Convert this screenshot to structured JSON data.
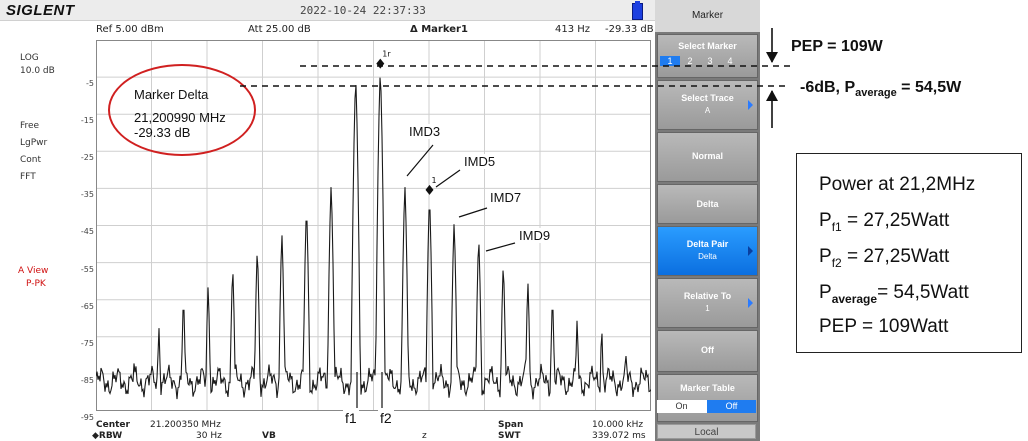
{
  "header": {
    "brand": "SIGLENT",
    "datetime": "2022-10-24  22:37:33"
  },
  "info": {
    "ref": "Ref  5.00 dBm",
    "att": "Att  25.00 dB",
    "marker_name": "Δ Marker1",
    "marker_freq": "413 Hz",
    "marker_level": "-29.33 dB"
  },
  "left_panel": {
    "scale": "LOG",
    "div": "10.0 dB",
    "free": "Free",
    "lgpwr": "LgPwr",
    "cont": "Cont",
    "fft": "FFT",
    "view": "A View",
    "ppk": "P-PK"
  },
  "y_ticks": [
    "-5",
    "-15",
    "-25",
    "-35",
    "-45",
    "-55",
    "-65",
    "-75",
    "-85",
    "-95"
  ],
  "bottom": {
    "center_label": "Center",
    "center_value": "21.200350 MHz",
    "rbw_label": "◆RBW",
    "rbw_value": "30 Hz",
    "vbw_label": "VB",
    "vbw_value": "z",
    "span_label": "Span",
    "span_value": "10.000 kHz",
    "swt_label": "SWT",
    "swt_value": "339.072 ms"
  },
  "softkeys": {
    "title": "Marker",
    "select_marker": "Select Marker",
    "marker_numbers": [
      "1",
      "2",
      "3",
      "4"
    ],
    "select_trace": "Select Trace",
    "select_trace_value": "A",
    "normal": "Normal",
    "delta": "Delta",
    "delta_pair": "Delta Pair",
    "delta_pair_value": "Delta",
    "relative_to": "Relative To",
    "relative_to_value": "1",
    "off": "Off",
    "marker_table": "Marker Table",
    "on": "On",
    "off_toggle": "Off",
    "local": "Local"
  },
  "marker_labels": {
    "m1": "1",
    "m1r": "1r"
  },
  "annotations": {
    "marker_delta_title": "Marker Delta",
    "marker_delta_freq": "21,200990 MHz",
    "marker_delta_level": "-29.33 dB",
    "imd3": "IMD3",
    "imd5": "IMD5",
    "imd7": "IMD7",
    "imd9": "IMD9",
    "f1": "f1",
    "f2": "f2",
    "pep": "PEP = 109W",
    "avg_prefix": "-6dB, P",
    "avg_sub": "average",
    "avg_suffix": " = 54,5W"
  },
  "power_box": {
    "title": "Power at 21,2MHz",
    "pf1_prefix": "P",
    "pf1_sub": "f1",
    "pf1_value": " = 27,25Watt",
    "pf2_prefix": "P",
    "pf2_sub": "f2",
    "pf2_value": " = 27,25Watt",
    "pavg_prefix": "P",
    "pavg_sub": "average",
    "pavg_value": "= 54,5Watt",
    "pep": "PEP = 109Watt"
  },
  "colors": {
    "trace": "#1a1a1a",
    "grid": "#cfcfcf",
    "highlight": "#d02020",
    "active_key": "#1f7cf0"
  },
  "spectrum": {
    "note": "",
    "peaks_dbm": [
      -80,
      -72,
      -64,
      -61,
      -56,
      -51,
      -47,
      -40,
      -34,
      -5,
      -3,
      -34,
      -37,
      -44,
      -48,
      -55,
      -60,
      -64,
      -70,
      -72,
      -78
    ]
  }
}
